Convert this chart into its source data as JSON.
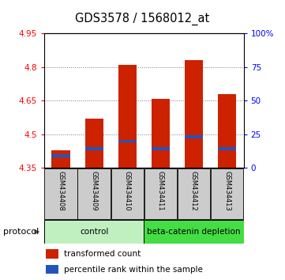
{
  "title": "GDS3578 / 1568012_at",
  "samples": [
    "GSM434408",
    "GSM434409",
    "GSM434410",
    "GSM434411",
    "GSM434412",
    "GSM434413"
  ],
  "red_bar_tops": [
    4.43,
    4.57,
    4.81,
    4.66,
    4.83,
    4.68
  ],
  "blue_marker_vals": [
    4.405,
    4.435,
    4.47,
    4.435,
    4.49,
    4.435
  ],
  "bar_bottom": 4.35,
  "ylim_left": [
    4.35,
    4.95
  ],
  "ylim_right": [
    0,
    100
  ],
  "yticks_left": [
    4.35,
    4.5,
    4.65,
    4.8,
    4.95
  ],
  "yticks_right": [
    0,
    25,
    50,
    75,
    100
  ],
  "ytick_labels_left": [
    "4.35",
    "4.5",
    "4.65",
    "4.8",
    "4.95"
  ],
  "ytick_labels_right": [
    "0",
    "25",
    "50",
    "75",
    "100%"
  ],
  "bar_color": "#cc2200",
  "blue_color": "#2255bb",
  "bar_width": 0.55,
  "grid_color": "#777777",
  "sample_bg_color": "#cccccc",
  "ctrl_color": "#c0f0c0",
  "beta_color": "#44dd44",
  "tick_fontsize": 7.5,
  "title_fontsize": 10.5
}
